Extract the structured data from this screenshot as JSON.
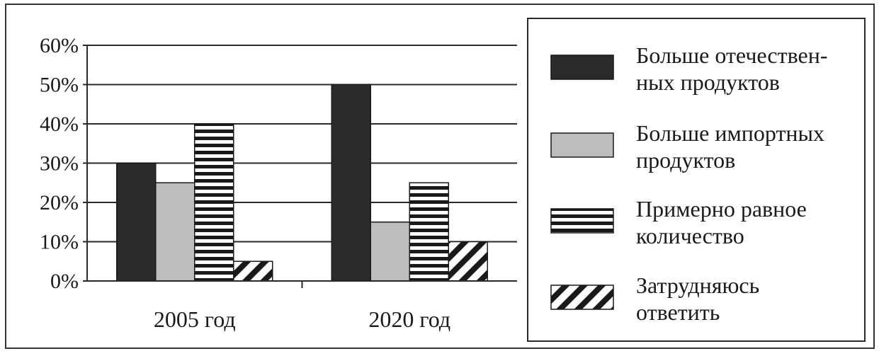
{
  "chart_data": {
    "type": "bar",
    "categories": [
      "2005 год",
      "2020 год"
    ],
    "series": [
      {
        "name": "Больше отечественных продуктов",
        "legend_lines": [
          "Больше отечествен-",
          "ных продуктов"
        ],
        "values": [
          30,
          50
        ],
        "pattern": "solid-dark",
        "color": "#2b2b2b"
      },
      {
        "name": "Больше импортных продуктов",
        "legend_lines": [
          "Больше импортных",
          "продуктов"
        ],
        "values": [
          25,
          15
        ],
        "pattern": "solid-light",
        "color": "#bdbdbd"
      },
      {
        "name": "Примерно равное количество",
        "legend_lines": [
          "Примерно равное",
          "количество"
        ],
        "values": [
          40,
          25
        ],
        "pattern": "horizontal-stripes",
        "color": "#1a1a1a"
      },
      {
        "name": "Затрудняюсь ответить",
        "legend_lines": [
          "Затрудняюсь",
          "ответить"
        ],
        "values": [
          5,
          10
        ],
        "pattern": "diagonal-stripes",
        "color": "#1a1a1a"
      }
    ],
    "ylim": [
      0,
      60
    ],
    "yticks": [
      "0%",
      "10%",
      "20%",
      "30%",
      "40%",
      "50%",
      "60%"
    ],
    "ytick_values": [
      0,
      10,
      20,
      30,
      40,
      50,
      60
    ],
    "grid": true,
    "legend_position": "right",
    "xlabel": "",
    "ylabel": "",
    "title": ""
  }
}
